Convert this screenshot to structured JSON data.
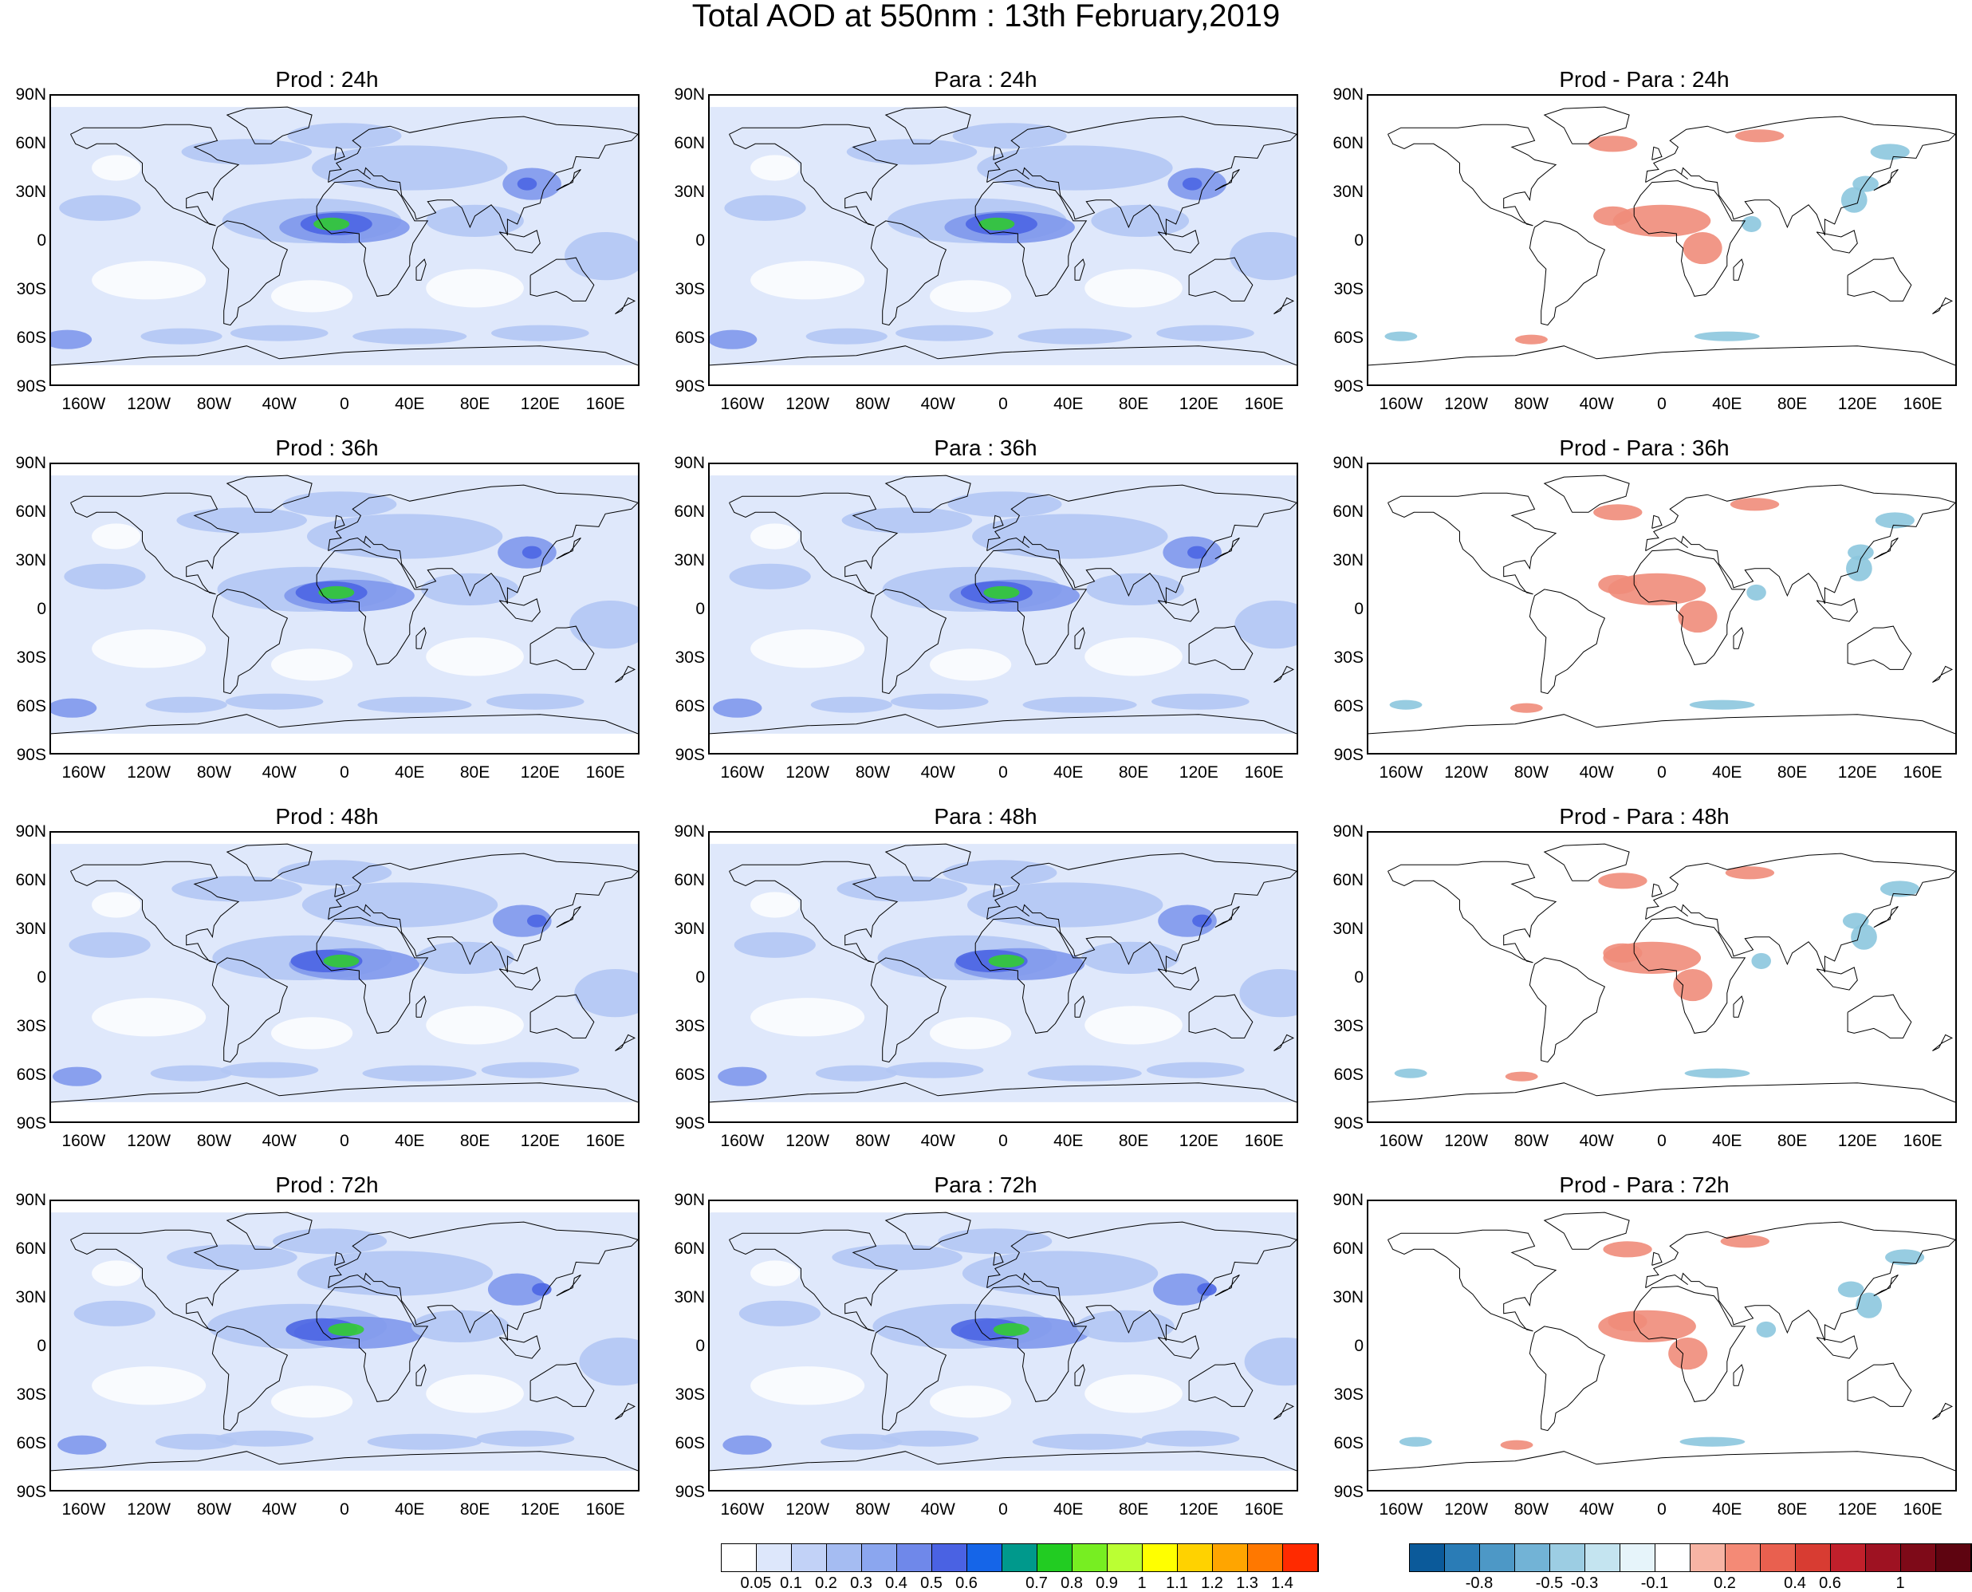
{
  "title": "Total AOD at 550nm : 13th February,2019",
  "lat_ticks": [
    "90N",
    "60N",
    "30N",
    "0",
    "30S",
    "60S",
    "90S"
  ],
  "lon_ticks": [
    "160W",
    "120W",
    "80W",
    "40W",
    "0",
    "40E",
    "80E",
    "120E",
    "160E"
  ],
  "panels": [
    {
      "title": "Prod : 24h",
      "kind": "aod"
    },
    {
      "title": "Para : 24h",
      "kind": "aod"
    },
    {
      "title": "Prod - Para : 24h",
      "kind": "diff"
    },
    {
      "title": "Prod : 36h",
      "kind": "aod"
    },
    {
      "title": "Para : 36h",
      "kind": "aod"
    },
    {
      "title": "Prod - Para : 36h",
      "kind": "diff"
    },
    {
      "title": "Prod : 48h",
      "kind": "aod"
    },
    {
      "title": "Para : 48h",
      "kind": "aod"
    },
    {
      "title": "Prod - Para : 48h",
      "kind": "diff"
    },
    {
      "title": "Prod : 72h",
      "kind": "aod"
    },
    {
      "title": "Para : 72h",
      "kind": "aod"
    },
    {
      "title": "Prod - Para : 72h",
      "kind": "diff"
    }
  ],
  "aod_colorbar": {
    "labels": [
      "0.05",
      "0.1",
      "0.2",
      "0.3",
      "0.4",
      "0.5",
      "0.6",
      "0.7",
      "0.8",
      "0.9",
      "1",
      "1.1",
      "1.2",
      "1.3",
      "1.4"
    ],
    "colors": [
      "#ffffff",
      "#dde7fb",
      "#c2d2f7",
      "#a5bcf2",
      "#8ba6ef",
      "#6f88ea",
      "#4a62e3",
      "#1565e8",
      "#00998c",
      "#22cc22",
      "#77ee22",
      "#bbff33",
      "#ffff00",
      "#ffd200",
      "#ffa500",
      "#ff7800",
      "#ff2a00"
    ]
  },
  "diff_colorbar": {
    "labels": [
      "-0.8",
      "-0.5",
      "-0.3",
      "-0.1",
      "0.2",
      "0.4",
      "0.6",
      "1"
    ],
    "colors": [
      "#0b5a9a",
      "#2a7cb6",
      "#4d98c6",
      "#72b3d6",
      "#9ccde3",
      "#c4e4f0",
      "#e6f4fa",
      "#ffffff",
      "#f7b4a4",
      "#f48a76",
      "#e9604f",
      "#d83c32",
      "#c1202b",
      "#9e1222",
      "#7e0a18",
      "#5e0410"
    ]
  },
  "palette": {
    "aod_background": "#dfe8fb",
    "aod_medium": "#b2c6f4",
    "aod_strong": "#7f98ec",
    "aod_very_strong": "#4d66e3",
    "aod_peak": "#33cc33",
    "diff_positive": "#f08c7a",
    "diff_negative": "#8cc6de"
  }
}
